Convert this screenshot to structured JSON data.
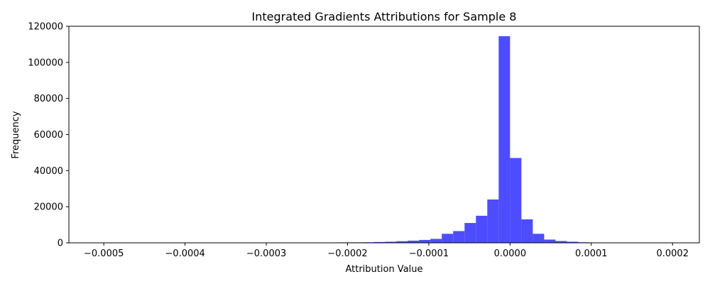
{
  "chart_data": {
    "type": "bar",
    "title": "Integrated Gradients Attributions for Sample 8",
    "xlabel": "Attribution Value",
    "ylabel": "Frequency",
    "xlim": [
      -0.000543,
      0.000233
    ],
    "ylim": [
      0,
      120000
    ],
    "xticks": [
      -0.0005,
      -0.0004,
      -0.0003,
      -0.0002,
      -0.0001,
      0.0,
      0.0001,
      0.0002
    ],
    "xtick_labels": [
      "−0.0005",
      "−0.0004",
      "−0.0003",
      "−0.0002",
      "−0.0001",
      "0.0000",
      "0.0001",
      "0.0002"
    ],
    "yticks": [
      0,
      20000,
      40000,
      60000,
      80000,
      100000,
      120000
    ],
    "ytick_labels": [
      "0",
      "20000",
      "40000",
      "60000",
      "80000",
      "100000",
      "120000"
    ],
    "bar_color": "#4d4dff",
    "bins": [
      {
        "x0": -0.000308,
        "x1": -0.000294,
        "value": 150
      },
      {
        "x0": -0.000294,
        "x1": -0.00028,
        "value": 120
      },
      {
        "x0": -0.00028,
        "x1": -0.000266,
        "value": 130
      },
      {
        "x0": -0.000266,
        "x1": -0.000252,
        "value": 140
      },
      {
        "x0": -0.000252,
        "x1": -0.000238,
        "value": 160
      },
      {
        "x0": -0.000238,
        "x1": -0.000224,
        "value": 180
      },
      {
        "x0": -0.000224,
        "x1": -0.00021,
        "value": 200
      },
      {
        "x0": -0.00021,
        "x1": -0.000196,
        "value": 230
      },
      {
        "x0": -0.000196,
        "x1": -0.000182,
        "value": 260
      },
      {
        "x0": -0.000182,
        "x1": -0.000168,
        "value": 300
      },
      {
        "x0": -0.000168,
        "x1": -0.000154,
        "value": 450
      },
      {
        "x0": -0.000154,
        "x1": -0.00014,
        "value": 600
      },
      {
        "x0": -0.00014,
        "x1": -0.000126,
        "value": 900
      },
      {
        "x0": -0.000126,
        "x1": -0.000112,
        "value": 1200
      },
      {
        "x0": -0.000112,
        "x1": -9.8e-05,
        "value": 1600
      },
      {
        "x0": -9.8e-05,
        "x1": -8.4e-05,
        "value": 2200
      },
      {
        "x0": -8.4e-05,
        "x1": -7e-05,
        "value": 5000
      },
      {
        "x0": -7e-05,
        "x1": -5.6e-05,
        "value": 6500
      },
      {
        "x0": -5.6e-05,
        "x1": -4.2e-05,
        "value": 11000
      },
      {
        "x0": -4.2e-05,
        "x1": -2.8e-05,
        "value": 15000
      },
      {
        "x0": -2.8e-05,
        "x1": -1.4e-05,
        "value": 24000
      },
      {
        "x0": -1.4e-05,
        "x1": 0.0,
        "value": 114500
      },
      {
        "x0": 0.0,
        "x1": 1.4e-05,
        "value": 47000
      },
      {
        "x0": 1.4e-05,
        "x1": 2.8e-05,
        "value": 13000
      },
      {
        "x0": 2.8e-05,
        "x1": 4.2e-05,
        "value": 5000
      },
      {
        "x0": 4.2e-05,
        "x1": 5.6e-05,
        "value": 1800
      },
      {
        "x0": 5.6e-05,
        "x1": 7e-05,
        "value": 1000
      },
      {
        "x0": 7e-05,
        "x1": 8.4e-05,
        "value": 600
      },
      {
        "x0": 8.4e-05,
        "x1": 9.8e-05,
        "value": 300
      },
      {
        "x0": 9.8e-05,
        "x1": 0.000112,
        "value": 200
      },
      {
        "x0": 0.000112,
        "x1": 0.000126,
        "value": 120
      }
    ]
  }
}
